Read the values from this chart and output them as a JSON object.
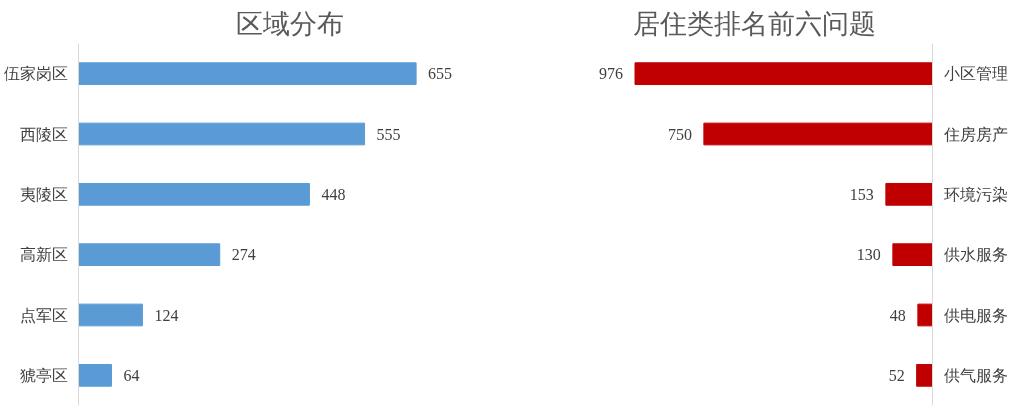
{
  "chart_data": [
    {
      "type": "bar",
      "orientation": "horizontal",
      "title": "区域分布",
      "categories": [
        "伍家岗区",
        "西陵区",
        "夷陵区",
        "高新区",
        "点军区",
        "猇亭区"
      ],
      "values": [
        655,
        555,
        448,
        274,
        124,
        64
      ],
      "color": "#5b9bd5",
      "data_labels": true,
      "tick_labels": "y",
      "grid": false
    },
    {
      "type": "bar",
      "orientation": "horizontal",
      "title": "居住类排名前六问题",
      "categories": [
        "小区管理",
        "住房房产",
        "环境污染",
        "供水服务",
        "供电服务",
        "供气服务"
      ],
      "values": [
        976,
        750,
        153,
        130,
        48,
        52
      ],
      "color": "#c00000",
      "xlim": [
        976,
        0
      ],
      "data_labels": true,
      "tick_labels": "y",
      "grid": false
    }
  ]
}
